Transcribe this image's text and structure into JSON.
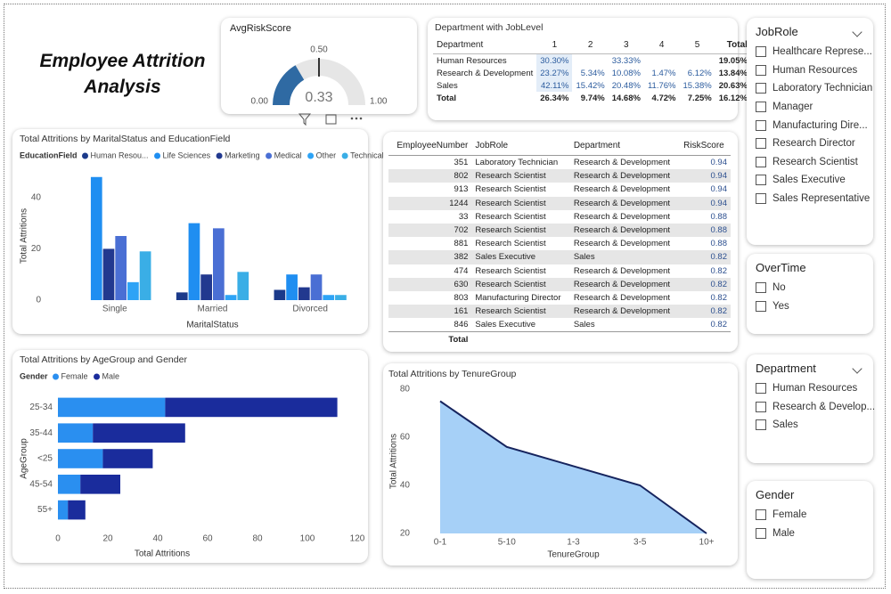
{
  "title": "Employee Attrition Analysis",
  "gauge": {
    "title": "AvgRiskScore",
    "min": {
      "value": 0,
      "label": "0.00"
    },
    "max": {
      "value": 1,
      "label": "1.00"
    },
    "target": {
      "value": 0.5,
      "label": "0.50"
    },
    "value": 0.33,
    "color": "#2f6aa3",
    "track_color": "#e6e6e6"
  },
  "matrix": {
    "title": "Department with JobLevel",
    "columns": [
      "Department",
      "1",
      "2",
      "3",
      "4",
      "5",
      "Total"
    ],
    "rows": [
      [
        "Human Resources",
        "30.30%",
        null,
        "33.33%",
        null,
        null,
        "19.05%"
      ],
      [
        "Research & Development",
        "23.27%",
        "5.34%",
        "10.08%",
        "1.47%",
        "6.12%",
        "13.84%"
      ],
      [
        "Sales",
        "42.11%",
        "15.42%",
        "20.48%",
        "11.76%",
        "15.38%",
        "20.63%"
      ],
      [
        "Total",
        "26.34%",
        "9.74%",
        "14.68%",
        "4.72%",
        "7.25%",
        "16.12%"
      ]
    ]
  },
  "table": {
    "columns": [
      "EmployeeNumber",
      "JobRole",
      "Department",
      "RiskScore"
    ],
    "rows": [
      [
        351,
        "Laboratory Technician",
        "Research & Development",
        0.94
      ],
      [
        802,
        "Research Scientist",
        "Research & Development",
        0.94
      ],
      [
        913,
        "Research Scientist",
        "Research & Development",
        0.94
      ],
      [
        1244,
        "Research Scientist",
        "Research & Development",
        0.94
      ],
      [
        33,
        "Research Scientist",
        "Research & Development",
        0.88
      ],
      [
        702,
        "Research Scientist",
        "Research & Development",
        0.88
      ],
      [
        881,
        "Research Scientist",
        "Research & Development",
        0.88
      ],
      [
        382,
        "Sales Executive",
        "Sales",
        0.82
      ],
      [
        474,
        "Research Scientist",
        "Research & Development",
        0.82
      ],
      [
        630,
        "Research Scientist",
        "Research & Development",
        0.82
      ],
      [
        803,
        "Manufacturing Director",
        "Research & Development",
        0.82
      ],
      [
        161,
        "Research Scientist",
        "Research & Development",
        0.82
      ],
      [
        846,
        "Sales Executive",
        "Sales",
        0.82
      ]
    ],
    "total": "Total"
  },
  "slicers": [
    {
      "title": "JobRole",
      "items": [
        "Healthcare Represe...",
        "Human Resources",
        "Laboratory Technician",
        "Manager",
        "Manufacturing Dire...",
        "Research Director",
        "Research Scientist",
        "Sales Executive",
        "Sales Representative"
      ]
    },
    {
      "title": "OverTime",
      "items": [
        "No",
        "Yes"
      ]
    },
    {
      "title": "Department",
      "items": [
        "Human Resources",
        "Research & Develop...",
        "Sales"
      ]
    },
    {
      "title": "Gender",
      "items": [
        "Female",
        "Male"
      ]
    }
  ],
  "chart_data": [
    {
      "type": "bar",
      "title": "Total Attritions by MaritalStatus and EducationField",
      "legend_title": "EducationField",
      "x_label": "MaritalStatus",
      "y_label": "Total Attritions",
      "categories": [
        "Single",
        "Married",
        "Divorced"
      ],
      "series": [
        {
          "name": "Human Resou...",
          "color": "#1b3a8a",
          "values": [
            0,
            3,
            4
          ]
        },
        {
          "name": "Life Sciences",
          "color": "#1f8ef1",
          "values": [
            48,
            30,
            10
          ]
        },
        {
          "name": "Marketing",
          "color": "#22398f",
          "values": [
            20,
            10,
            5
          ]
        },
        {
          "name": "Medical",
          "color": "#4a6fd4",
          "values": [
            25,
            28,
            10
          ]
        },
        {
          "name": "Other",
          "color": "#2da3f6",
          "values": [
            7,
            2,
            2
          ]
        },
        {
          "name": "Technical ...",
          "color": "#3aaee6",
          "values": [
            19,
            11,
            2
          ]
        }
      ],
      "ylim": [
        0,
        50
      ],
      "yticks": [
        0,
        20,
        40
      ],
      "grid": false
    },
    {
      "type": "barh",
      "title": "Total Attritions by AgeGroup and Gender",
      "legend_title": "Gender",
      "x_label": "Total Attritions",
      "y_label": "AgeGroup",
      "categories": [
        "25-34",
        "35-44",
        "<25",
        "45-54",
        "55+"
      ],
      "series": [
        {
          "name": "Female",
          "color": "#2a8ff0",
          "values": [
            43,
            14,
            18,
            9,
            4
          ]
        },
        {
          "name": "Male",
          "color": "#1a2c9c",
          "values": [
            69,
            37,
            20,
            16,
            7
          ]
        }
      ],
      "xlim": [
        0,
        120
      ],
      "xticks": [
        0,
        20,
        40,
        60,
        80,
        100,
        120
      ],
      "grid": false
    },
    {
      "type": "area",
      "title": "Total Attritions by TenureGroup",
      "x_label": "TenureGroup",
      "y_label": "Total Attritions",
      "categories": [
        "0-1",
        "5-10",
        "1-3",
        "3-5",
        "10+"
      ],
      "values": [
        75,
        56,
        48,
        40,
        20
      ],
      "color": "#a6d0f7",
      "line_color": "#16245e",
      "ylim": [
        20,
        80
      ],
      "yticks": [
        20,
        40,
        60,
        80
      ],
      "grid": false
    }
  ]
}
